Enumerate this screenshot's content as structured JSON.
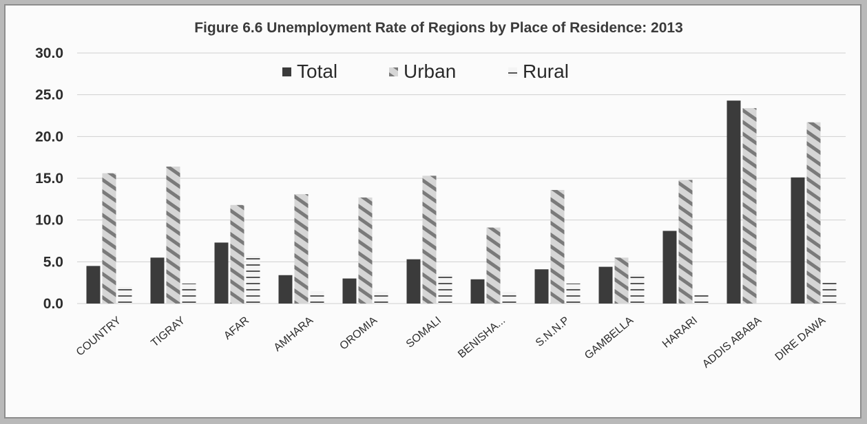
{
  "chart_data": {
    "type": "bar",
    "title": "Figure 6.6 Unemployment Rate of Regions by Place of Residence: 2013",
    "xlabel": "",
    "ylabel": "",
    "ylim": [
      0,
      30
    ],
    "yticks": [
      "0.0",
      "5.0",
      "10.0",
      "15.0",
      "20.0",
      "25.0",
      "30.0"
    ],
    "grid": true,
    "legend_position": "top-center",
    "categories": [
      "COUNTRY",
      "TIGRAY",
      "AFAR",
      "AMHARA",
      "OROMIA",
      "SOMALI",
      "BENISHA...",
      "S.N.N.P",
      "GAMBELLA",
      "HARARI",
      "ADDIS ABABA",
      "DIRE DAWA"
    ],
    "series": [
      {
        "name": "Total",
        "color": "#3c3c3c",
        "values": [
          4.5,
          5.5,
          7.3,
          3.4,
          3.0,
          5.3,
          2.9,
          4.1,
          4.4,
          8.7,
          24.3,
          15.1
        ]
      },
      {
        "name": "Urban",
        "color": "#bdbdbd",
        "values": [
          15.6,
          16.4,
          11.8,
          13.1,
          12.7,
          15.3,
          9.1,
          13.6,
          5.5,
          14.8,
          23.4,
          21.7
        ]
      },
      {
        "name": "Rural",
        "color": "#e8e8e8",
        "values": [
          2.0,
          2.4,
          5.7,
          1.5,
          1.4,
          3.5,
          1.4,
          2.4,
          3.5,
          1.1,
          0.0,
          2.5
        ]
      }
    ]
  }
}
